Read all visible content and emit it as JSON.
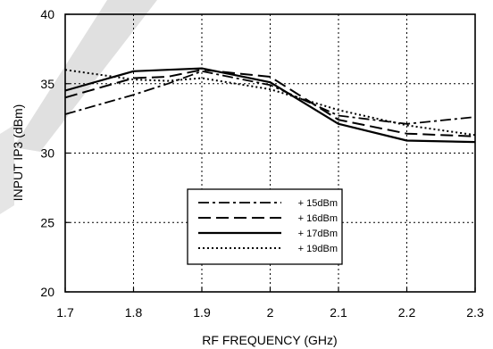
{
  "colors": {
    "line": "#000000",
    "background": "#ffffff",
    "watermark": "#000000"
  },
  "chart_data": {
    "type": "line",
    "title": "",
    "xlabel": "RF FREQUENCY (GHz)",
    "ylabel": "INPUT  IP3 (dBm)",
    "xlim": [
      1.7,
      2.3
    ],
    "ylim": [
      20,
      40
    ],
    "xticks": [
      1.7,
      1.8,
      1.9,
      2.0,
      2.1,
      2.2,
      2.3
    ],
    "xtick_labels": [
      "1.7",
      "1.8",
      "1.9",
      "2",
      "2.1",
      "2.2",
      "2.3"
    ],
    "yticks": [
      20,
      25,
      30,
      35,
      40
    ],
    "ytick_labels": [
      "20",
      "25",
      "30",
      "35",
      "40"
    ],
    "grid": true,
    "legend_position": "lower-center",
    "series": [
      {
        "name": "+ 15dBm",
        "dash": "dash-dot",
        "x": [
          1.7,
          1.8,
          1.85,
          1.9,
          2.0,
          2.1,
          2.2,
          2.3
        ],
        "y": [
          32.8,
          34.2,
          35.0,
          35.9,
          34.9,
          32.7,
          32.1,
          32.6
        ]
      },
      {
        "name": "+ 16dBm",
        "dash": "long-dash",
        "x": [
          1.7,
          1.8,
          1.85,
          1.9,
          2.0,
          2.1,
          2.2,
          2.3
        ],
        "y": [
          34.0,
          35.4,
          35.5,
          36.0,
          35.5,
          32.4,
          31.4,
          31.2
        ]
      },
      {
        "name": "+ 17dBm",
        "dash": "solid",
        "x": [
          1.7,
          1.8,
          1.85,
          1.9,
          2.0,
          2.1,
          2.2,
          2.3
        ],
        "y": [
          34.5,
          35.9,
          36.0,
          36.1,
          35.1,
          32.1,
          30.9,
          30.8
        ]
      },
      {
        "name": "+ 19dBm",
        "dash": "dotted",
        "x": [
          1.7,
          1.8,
          1.85,
          1.9,
          2.0,
          2.1,
          2.2,
          2.3
        ],
        "y": [
          36.0,
          35.3,
          35.2,
          35.4,
          34.6,
          33.1,
          32.0,
          31.3
        ]
      }
    ]
  }
}
